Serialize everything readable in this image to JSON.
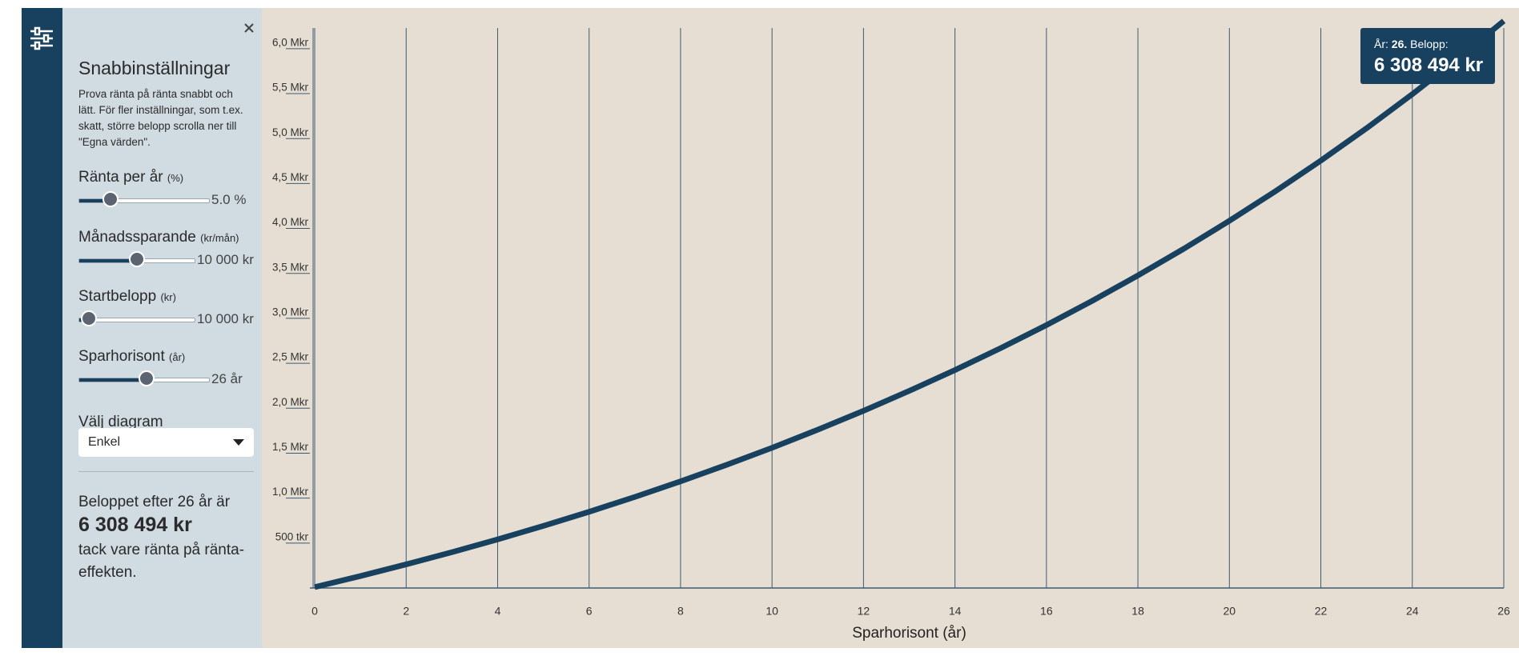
{
  "sidebar": {
    "title": "Snabbinställningar",
    "description": "Prova ränta på ränta snabbt och lätt. För fler inställningar, som t.ex. skatt, större belopp scrolla ner till \"Egna värden\".",
    "controls": [
      {
        "label": "Ränta per år",
        "unit": "(%)",
        "value": "5.0 %"
      },
      {
        "label": "Månadssparande",
        "unit": "(kr/mån)",
        "value": "10 000 kr"
      },
      {
        "label": "Startbelopp",
        "unit": "(kr)",
        "value": "10 000 kr"
      },
      {
        "label": "Sparhorisont",
        "unit": "(år)",
        "value": "26 år"
      }
    ],
    "chart_select": {
      "label": "Välj diagram",
      "value": "Enkel"
    },
    "result": {
      "intro": "Beloppet efter 26 år är",
      "amount": "6 308 494 kr",
      "outro": "tack vare ränta på ränta-effekten."
    }
  },
  "chart_data": {
    "type": "line",
    "x": [
      0,
      1,
      2,
      3,
      4,
      5,
      6,
      7,
      8,
      9,
      10,
      11,
      12,
      13,
      14,
      15,
      16,
      17,
      18,
      19,
      20,
      21,
      22,
      23,
      24,
      25,
      26
    ],
    "series": [
      {
        "name": "Belopp",
        "color": "#17415f",
        "values": [
          10000,
          133000,
          263000,
          398000,
          541000,
          691000,
          848000,
          1013000,
          1187000,
          1369000,
          1560000,
          1761000,
          1971000,
          2193000,
          2425000,
          2669000,
          2925000,
          3194000,
          3477000,
          3773000,
          4085000,
          4412000,
          4755000,
          5115000,
          5494000,
          5891000,
          6308494
        ]
      }
    ],
    "xlabel": "Sparhorisont (år)",
    "xlim": [
      0,
      26
    ],
    "xticks": [
      0,
      2,
      4,
      6,
      8,
      10,
      12,
      14,
      16,
      18,
      20,
      22,
      24,
      26
    ],
    "ylim": [
      0,
      6230000
    ],
    "yticks": [
      {
        "value": 500000,
        "label": "500 tkr"
      },
      {
        "value": 1000000,
        "label": "1,0 Mkr"
      },
      {
        "value": 1500000,
        "label": "1,5 Mkr"
      },
      {
        "value": 2000000,
        "label": "2,0 Mkr"
      },
      {
        "value": 2500000,
        "label": "2,5 Mkr"
      },
      {
        "value": 3000000,
        "label": "3,0 Mkr"
      },
      {
        "value": 3500000,
        "label": "3,5 Mkr"
      },
      {
        "value": 4000000,
        "label": "4,0 Mkr"
      },
      {
        "value": 4500000,
        "label": "4,5 Mkr"
      },
      {
        "value": 5000000,
        "label": "5,0 Mkr"
      },
      {
        "value": 5500000,
        "label": "5,5 Mkr"
      },
      {
        "value": 6000000,
        "label": "6,0 Mkr"
      }
    ],
    "grid": "x"
  },
  "tooltip": {
    "prefix": "År:",
    "year": "26.",
    "caption": "Belopp:",
    "amount": "6 308 494 kr"
  }
}
